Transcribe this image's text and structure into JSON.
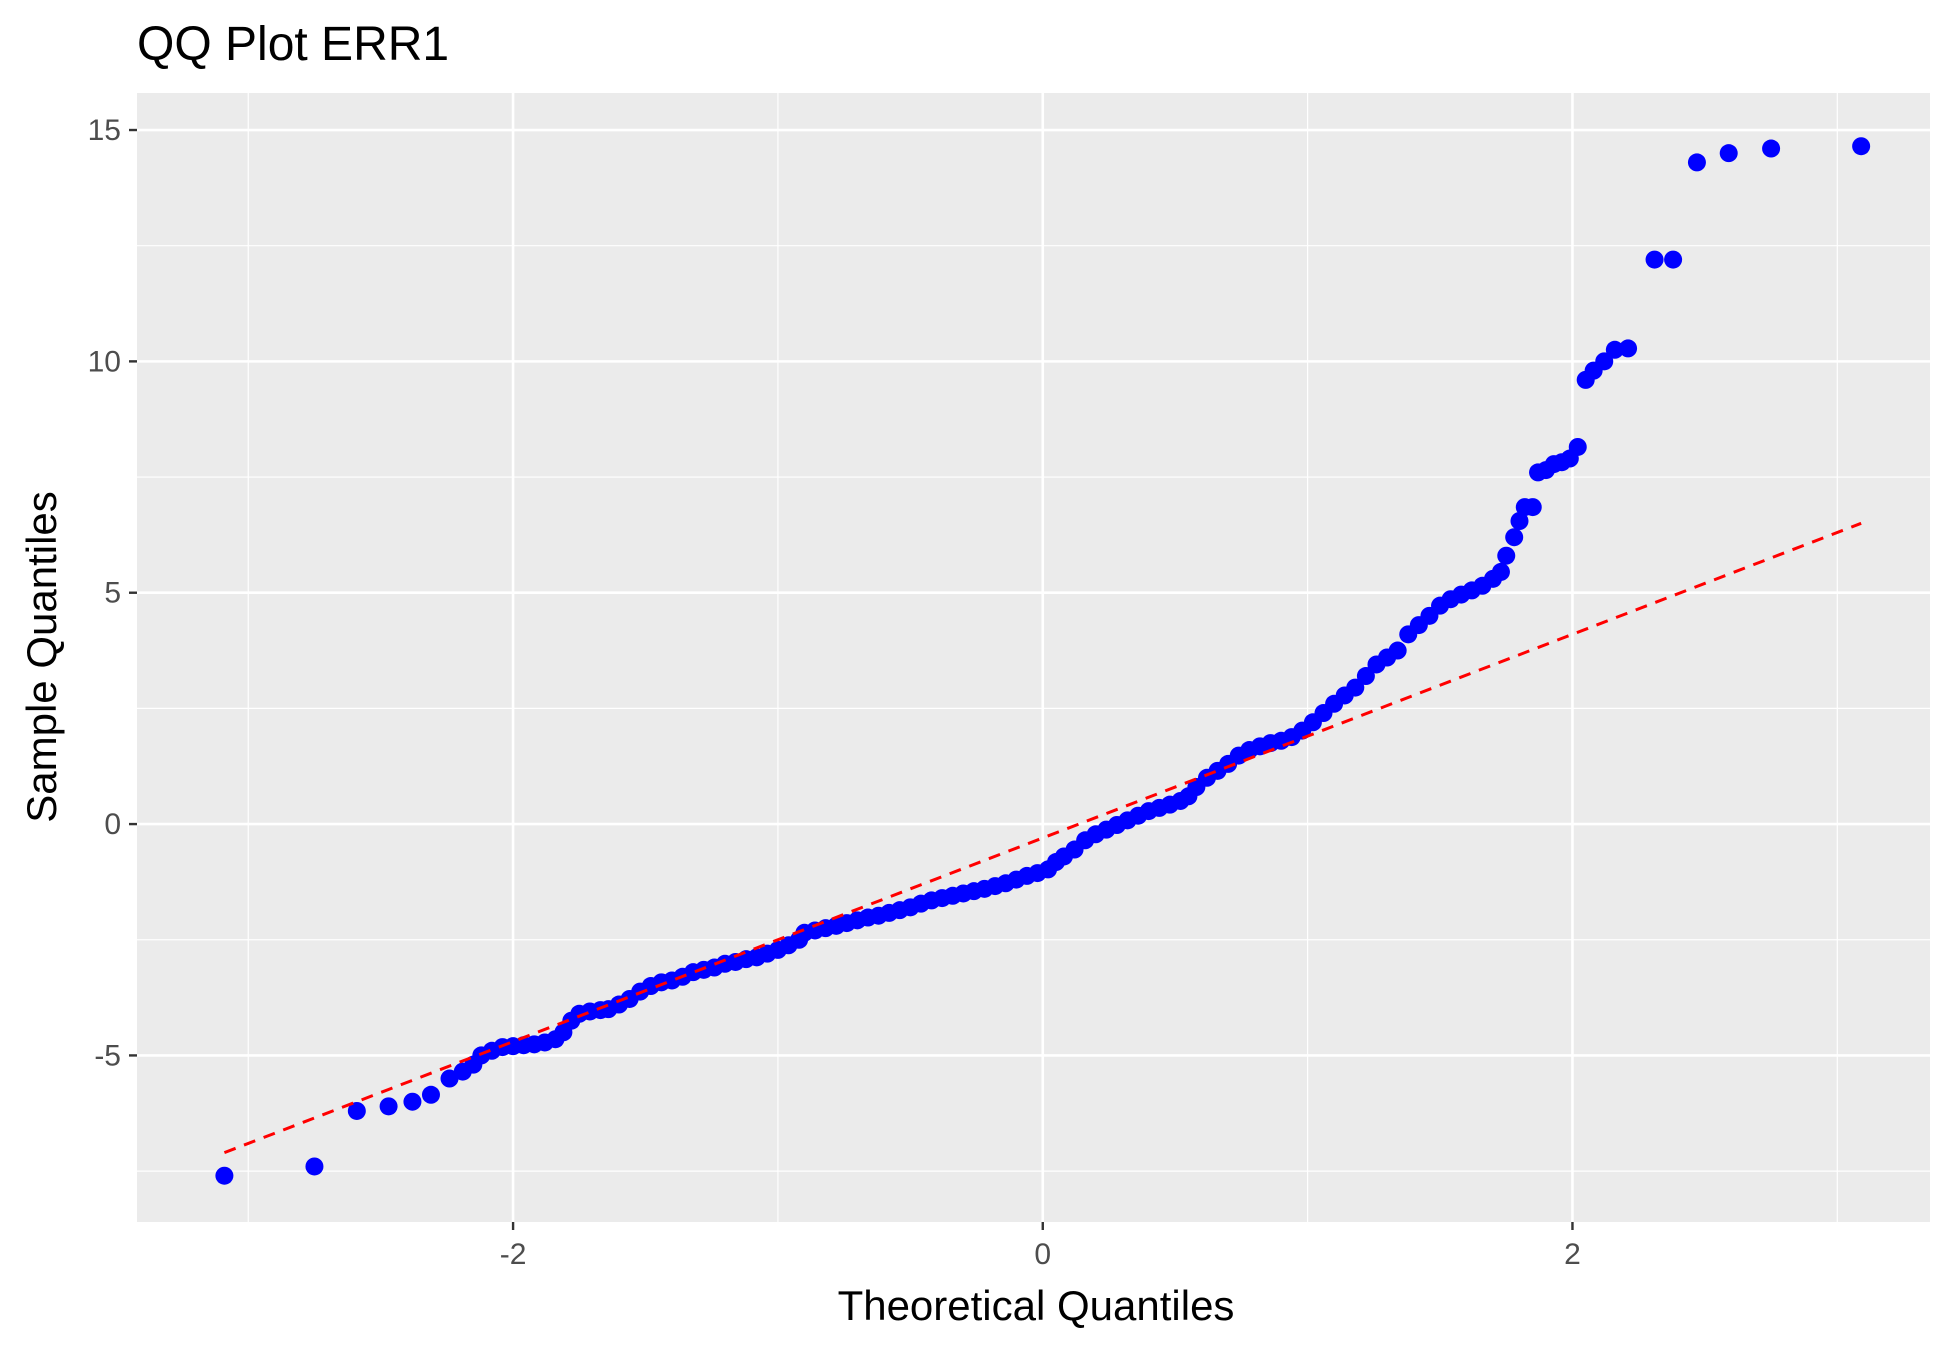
{
  "chart_data": {
    "type": "scatter",
    "title": "QQ Plot ERR1",
    "xlabel": "Theoretical Quantiles",
    "ylabel": "Sample Quantiles",
    "xlim": [
      -3.42,
      3.35
    ],
    "ylim": [
      -8.6,
      15.8
    ],
    "x_ticks": [
      -2,
      0,
      2
    ],
    "x_tick_labels": [
      "-2",
      "0",
      "2"
    ],
    "y_ticks": [
      -5,
      0,
      5,
      10,
      15
    ],
    "y_tick_labels": [
      "-5",
      "0",
      "5",
      "10",
      "15"
    ],
    "grid": true,
    "legend": "none",
    "colors": {
      "points": "#0000ff",
      "reference_line": "#ff0000",
      "panel": "#ebebeb",
      "grid": "#ffffff"
    },
    "series": [
      {
        "kind": "points",
        "points": [
          [
            -3.09,
            -7.6
          ],
          [
            -2.75,
            -7.4
          ],
          [
            -2.59,
            -6.2
          ],
          [
            -2.47,
            -6.1
          ],
          [
            -2.38,
            -6.0
          ],
          [
            -2.31,
            -5.85
          ],
          [
            -2.24,
            -5.5
          ],
          [
            -2.19,
            -5.35
          ],
          [
            -2.15,
            -5.2
          ],
          [
            -2.12,
            -5.0
          ],
          [
            -2.08,
            -4.9
          ],
          [
            -2.04,
            -4.82
          ],
          [
            -2.0,
            -4.8
          ],
          [
            -1.96,
            -4.78
          ],
          [
            -1.92,
            -4.76
          ],
          [
            -1.88,
            -4.72
          ],
          [
            -1.84,
            -4.65
          ],
          [
            -1.81,
            -4.5
          ],
          [
            -1.78,
            -4.25
          ],
          [
            -1.75,
            -4.1
          ],
          [
            -1.71,
            -4.05
          ],
          [
            -1.67,
            -4.02
          ],
          [
            -1.64,
            -4.0
          ],
          [
            -1.6,
            -3.9
          ],
          [
            -1.56,
            -3.78
          ],
          [
            -1.52,
            -3.62
          ],
          [
            -1.48,
            -3.5
          ],
          [
            -1.44,
            -3.42
          ],
          [
            -1.4,
            -3.38
          ],
          [
            -1.36,
            -3.3
          ],
          [
            -1.32,
            -3.2
          ],
          [
            -1.28,
            -3.15
          ],
          [
            -1.24,
            -3.1
          ],
          [
            -1.2,
            -3.02
          ],
          [
            -1.16,
            -2.98
          ],
          [
            -1.12,
            -2.92
          ],
          [
            -1.08,
            -2.88
          ],
          [
            -1.04,
            -2.8
          ],
          [
            -1.0,
            -2.72
          ],
          [
            -0.96,
            -2.62
          ],
          [
            -0.92,
            -2.5
          ],
          [
            -0.9,
            -2.35
          ],
          [
            -0.86,
            -2.3
          ],
          [
            -0.82,
            -2.25
          ],
          [
            -0.78,
            -2.2
          ],
          [
            -0.74,
            -2.14
          ],
          [
            -0.7,
            -2.08
          ],
          [
            -0.66,
            -2.02
          ],
          [
            -0.62,
            -1.98
          ],
          [
            -0.58,
            -1.92
          ],
          [
            -0.54,
            -1.86
          ],
          [
            -0.5,
            -1.8
          ],
          [
            -0.46,
            -1.72
          ],
          [
            -0.42,
            -1.65
          ],
          [
            -0.38,
            -1.6
          ],
          [
            -0.34,
            -1.55
          ],
          [
            -0.3,
            -1.5
          ],
          [
            -0.26,
            -1.45
          ],
          [
            -0.22,
            -1.4
          ],
          [
            -0.18,
            -1.34
          ],
          [
            -0.14,
            -1.28
          ],
          [
            -0.1,
            -1.2
          ],
          [
            -0.06,
            -1.12
          ],
          [
            -0.02,
            -1.06
          ],
          [
            0.02,
            -0.98
          ],
          [
            0.05,
            -0.82
          ],
          [
            0.08,
            -0.7
          ],
          [
            0.12,
            -0.55
          ],
          [
            0.16,
            -0.35
          ],
          [
            0.2,
            -0.22
          ],
          [
            0.24,
            -0.12
          ],
          [
            0.28,
            -0.02
          ],
          [
            0.32,
            0.08
          ],
          [
            0.36,
            0.18
          ],
          [
            0.4,
            0.28
          ],
          [
            0.44,
            0.35
          ],
          [
            0.48,
            0.42
          ],
          [
            0.52,
            0.5
          ],
          [
            0.55,
            0.6
          ],
          [
            0.58,
            0.8
          ],
          [
            0.62,
            1.0
          ],
          [
            0.66,
            1.15
          ],
          [
            0.7,
            1.3
          ],
          [
            0.74,
            1.48
          ],
          [
            0.78,
            1.6
          ],
          [
            0.82,
            1.68
          ],
          [
            0.86,
            1.75
          ],
          [
            0.9,
            1.8
          ],
          [
            0.94,
            1.88
          ],
          [
            0.98,
            2.02
          ],
          [
            1.02,
            2.2
          ],
          [
            1.06,
            2.4
          ],
          [
            1.1,
            2.6
          ],
          [
            1.14,
            2.78
          ],
          [
            1.18,
            2.95
          ],
          [
            1.22,
            3.2
          ],
          [
            1.26,
            3.45
          ],
          [
            1.3,
            3.6
          ],
          [
            1.34,
            3.75
          ],
          [
            1.38,
            4.1
          ],
          [
            1.42,
            4.3
          ],
          [
            1.46,
            4.5
          ],
          [
            1.5,
            4.72
          ],
          [
            1.54,
            4.86
          ],
          [
            1.58,
            4.96
          ],
          [
            1.62,
            5.05
          ],
          [
            1.66,
            5.15
          ],
          [
            1.7,
            5.3
          ],
          [
            1.73,
            5.45
          ],
          [
            1.75,
            5.8
          ],
          [
            1.78,
            6.2
          ],
          [
            1.8,
            6.55
          ],
          [
            1.82,
            6.85
          ],
          [
            1.85,
            6.85
          ],
          [
            1.87,
            7.6
          ],
          [
            1.9,
            7.65
          ],
          [
            1.93,
            7.78
          ],
          [
            1.96,
            7.82
          ],
          [
            1.99,
            7.9
          ],
          [
            2.02,
            8.15
          ],
          [
            2.05,
            9.6
          ],
          [
            2.08,
            9.8
          ],
          [
            2.12,
            10.0
          ],
          [
            2.16,
            10.25
          ],
          [
            2.21,
            10.28
          ],
          [
            2.31,
            12.2
          ],
          [
            2.38,
            12.2
          ],
          [
            2.47,
            14.3
          ],
          [
            2.59,
            14.5
          ],
          [
            2.75,
            14.6
          ],
          [
            3.09,
            14.65
          ]
        ]
      },
      {
        "kind": "reference-line",
        "x": [
          -3.09,
          3.09
        ],
        "y": [
          -7.1,
          6.5
        ]
      }
    ]
  }
}
